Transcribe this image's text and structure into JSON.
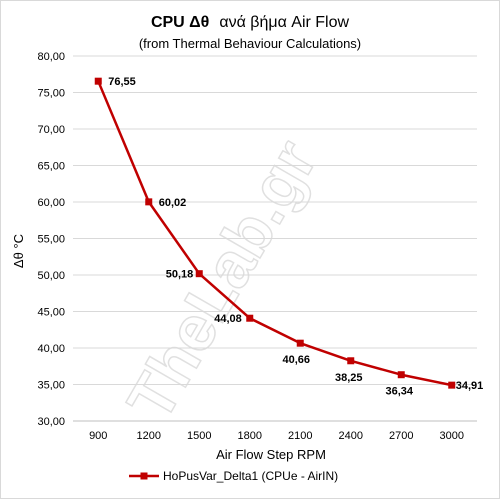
{
  "chart_data": {
    "type": "line",
    "title_part1": "CPU  Δθ",
    "title_part2": "ανά βήμα Air Flow",
    "subtitle": "(from Thermal Behaviour Calculations)",
    "xlabel": "Air Flow Step RPM",
    "ylabel": "Δθ °C",
    "ylim": [
      30,
      80
    ],
    "y_ticks": [
      "30,00",
      "35,00",
      "40,00",
      "45,00",
      "50,00",
      "55,00",
      "60,00",
      "65,00",
      "70,00",
      "75,00",
      "80,00"
    ],
    "categories": [
      "900",
      "1200",
      "1500",
      "1800",
      "2100",
      "2400",
      "2700",
      "3000"
    ],
    "series": [
      {
        "name": "HoPusVar_Delta1 (CPUe - AirIN)",
        "values": [
          76.55,
          60.02,
          50.18,
          44.08,
          40.66,
          38.25,
          36.34,
          34.91
        ],
        "labels": [
          "76,55",
          "60,02",
          "50,18",
          "44,08",
          "40,66",
          "38,25",
          "36,34",
          "34,91"
        ],
        "color": "#c00000"
      }
    ],
    "grid": true,
    "legend_position": "bottom"
  },
  "watermark": "TheLab.gr"
}
